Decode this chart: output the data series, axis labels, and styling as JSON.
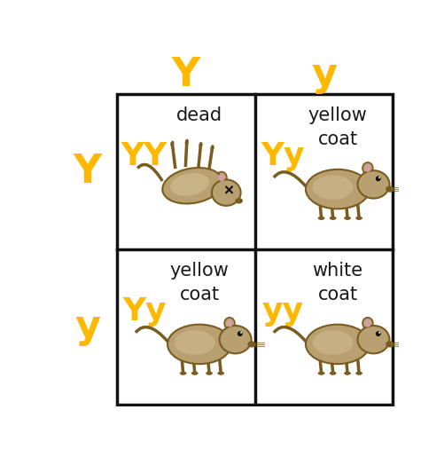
{
  "background_color": "#ffffff",
  "grid_color": "#111111",
  "allele_color": "#FFB800",
  "text_color": "#1a1a1a",
  "col_alleles": [
    "Y",
    "y"
  ],
  "row_alleles": [
    "Y",
    "y"
  ],
  "cells": [
    {
      "row": 0,
      "col": 0,
      "genotype": "YY",
      "label": "dead",
      "mouse_type": "dead",
      "genotype_color": "#FFB800"
    },
    {
      "row": 0,
      "col": 1,
      "genotype": "Yy",
      "label": "yellow\ncoat",
      "mouse_type": "yellow",
      "genotype_color": "#FFB800"
    },
    {
      "row": 1,
      "col": 0,
      "genotype": "Yy",
      "label": "yellow\ncoat",
      "mouse_type": "yellow",
      "genotype_color": "#FFB800"
    },
    {
      "row": 1,
      "col": 1,
      "genotype": "yy",
      "label": "white\ncoat",
      "mouse_type": "white",
      "genotype_color": "#FFB800"
    }
  ],
  "header_fontsize": 32,
  "genotype_fontsize": 26,
  "label_fontsize": 15,
  "mouse_color_body": "#B8A070",
  "mouse_color_dark": "#7A5C20",
  "mouse_color_belly": "#D0BC90",
  "mouse_color_light": "#C8B888"
}
